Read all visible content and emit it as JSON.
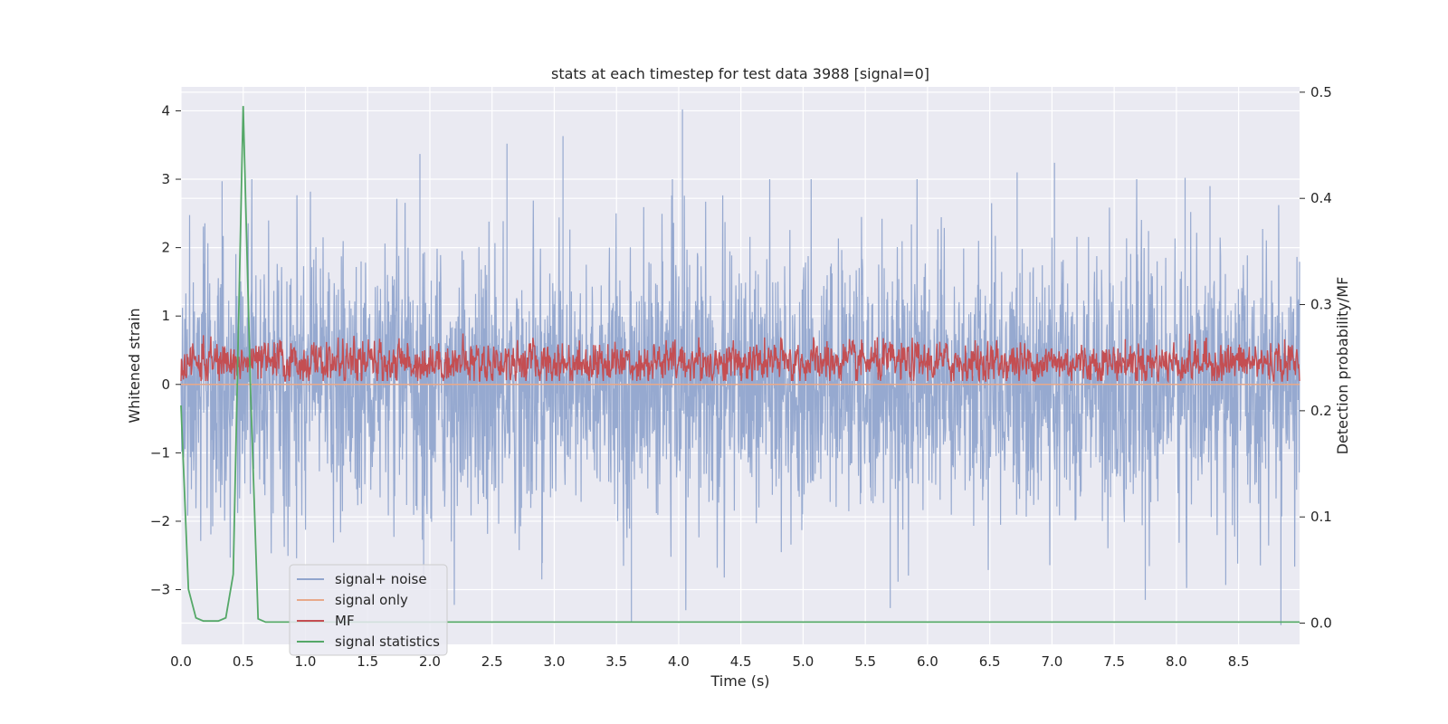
{
  "chart_data": {
    "type": "line",
    "title": "stats at each timestep for test data 3988 [signal=0]",
    "xlabel": "Time (s)",
    "ylabel": "Whitened strain",
    "ylabel_right": "Detection probability/MF",
    "xlim": [
      0.0,
      8.99
    ],
    "ylim": [
      -3.8,
      4.35
    ],
    "ylim_right": [
      -0.02,
      0.505
    ],
    "x_ticks": [
      "0.0",
      "0.5",
      "1.0",
      "1.5",
      "2.0",
      "2.5",
      "3.0",
      "3.5",
      "4.0",
      "4.5",
      "5.0",
      "5.5",
      "6.0",
      "6.5",
      "7.0",
      "7.5",
      "8.0",
      "8.5"
    ],
    "y_ticks": [
      "−3",
      "−2",
      "−1",
      "0",
      "1",
      "2",
      "3",
      "4"
    ],
    "y_right_ticks": [
      "0.0",
      "0.1",
      "0.2",
      "0.3",
      "0.4",
      "0.5"
    ],
    "grid": true,
    "legend_position": "lower-left",
    "series": [
      {
        "name": "signal+ noise",
        "axis": "left",
        "color": "#91a5cd",
        "description_range": [
          -3.5,
          4.0
        ],
        "peaks": [
          {
            "x": 0.33,
            "y": 2.97
          },
          {
            "x": 1.92,
            "y": 3.37
          },
          {
            "x": 2.62,
            "y": 3.52
          },
          {
            "x": 3.07,
            "y": 3.63
          },
          {
            "x": 4.03,
            "y": 4.02
          },
          {
            "x": 6.72,
            "y": 3.1
          },
          {
            "x": 7.02,
            "y": 3.24
          },
          {
            "x": 8.07,
            "y": 3.02
          },
          {
            "x": 8.27,
            "y": 2.9
          }
        ],
        "troughs": [
          {
            "x": 3.62,
            "y": -3.48
          },
          {
            "x": 5.7,
            "y": -3.27
          },
          {
            "x": 7.75,
            "y": -3.15
          },
          {
            "x": 8.84,
            "y": -3.52
          },
          {
            "x": 1.95,
            "y": -2.9
          },
          {
            "x": 2.9,
            "y": -2.85
          }
        ]
      },
      {
        "name": "signal only",
        "axis": "left",
        "color": "#e8a98a",
        "values_constant": 0.0
      },
      {
        "name": "MF",
        "axis": "left",
        "color": "#c44e52",
        "description_range": [
          0.05,
          0.98
        ]
      },
      {
        "name": "signal statistics",
        "axis": "right",
        "color": "#55a868",
        "x": [
          0.0,
          0.06,
          0.12,
          0.18,
          0.24,
          0.3,
          0.36,
          0.42,
          0.5,
          0.56,
          0.62,
          0.68,
          0.75,
          1.0,
          2.0,
          3.0,
          4.0,
          5.0,
          6.0,
          7.0,
          8.0,
          8.99
        ],
        "values": [
          0.205,
          0.032,
          0.005,
          0.002,
          0.002,
          0.002,
          0.005,
          0.046,
          0.487,
          0.215,
          0.004,
          0.001,
          0.001,
          0.001,
          0.001,
          0.001,
          0.001,
          0.001,
          0.001,
          0.001,
          0.001,
          0.001
        ]
      }
    ]
  }
}
